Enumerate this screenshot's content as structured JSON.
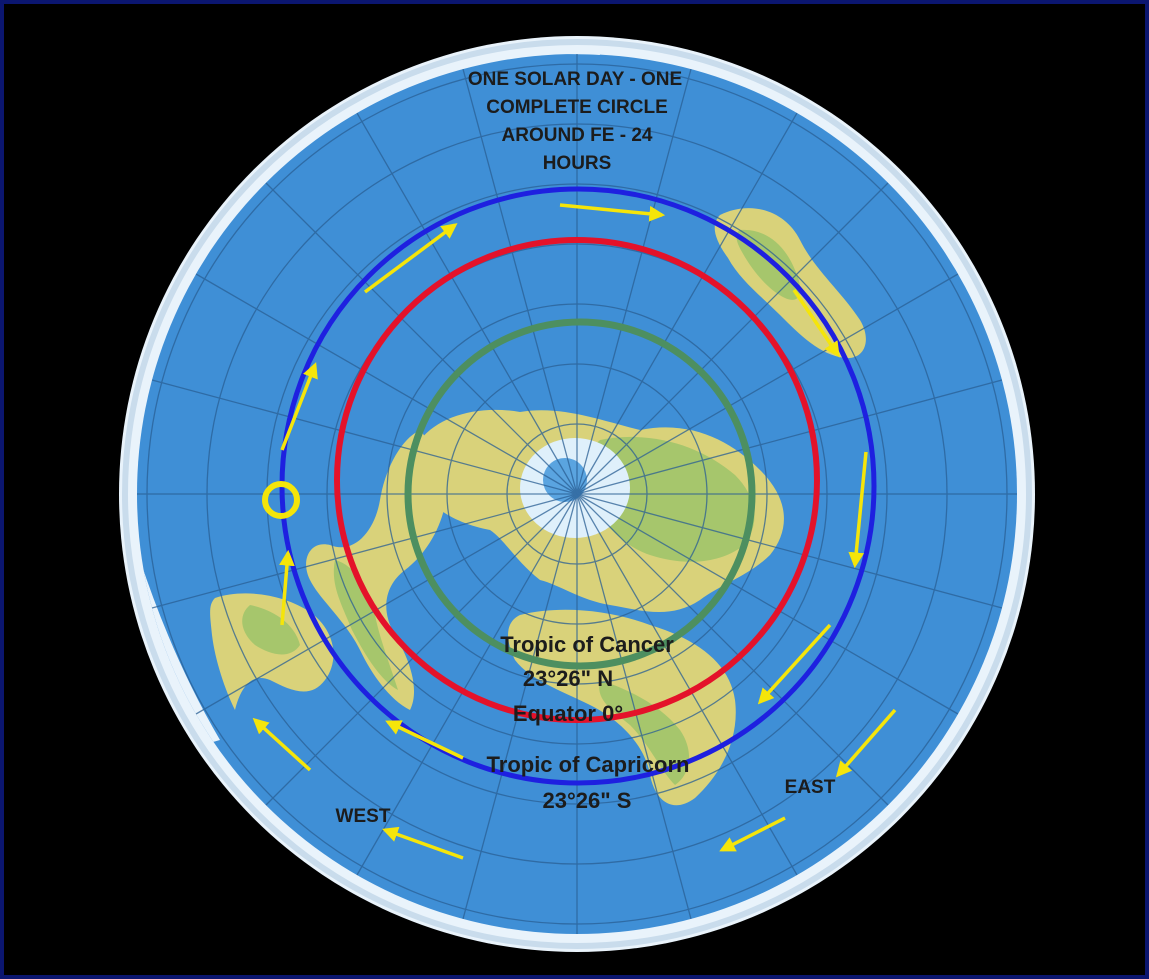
{
  "title_lines": [
    "ONE SOLAR DAY - ONE",
    "COMPLETE CIRCLE",
    "AROUND FE - 24",
    "HOURS"
  ],
  "labels": {
    "tropic_cancer": "Tropic of Cancer",
    "cancer_lat": "23°26\" N",
    "equator": "Equator 0°",
    "tropic_capricorn": "Tropic of Capricorn",
    "capricorn_lat": "23°26\" S",
    "east": "EAST",
    "west": "WEST"
  },
  "colors": {
    "frame": "#0b1670",
    "ocean": "#3f8fd6",
    "ice_rim": "#e9f3fb",
    "grid": "#2a5f94",
    "land": "#d9d27a",
    "land_green": "#9cc46a",
    "tropic_cancer_circle": "#4d8f60",
    "equator_circle": "#e4122a",
    "tropic_capricorn_circle": "#1e20e0",
    "sun_marker": "#f5e50a",
    "arrows": "#f5e50a"
  },
  "map_icons": [
    "sun-marker-icon",
    "motion-arrow-icon"
  ]
}
